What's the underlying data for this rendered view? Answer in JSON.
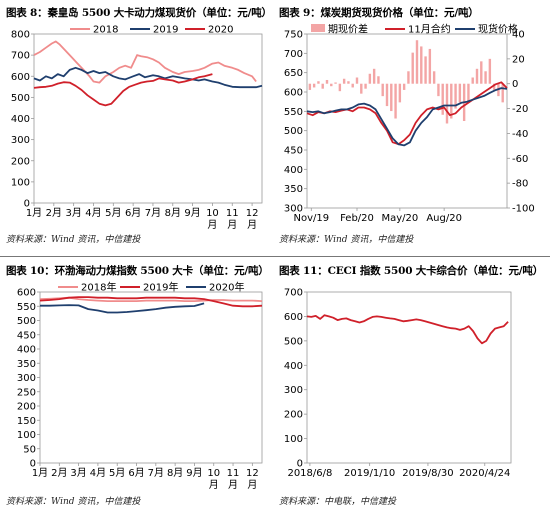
{
  "chart_data": [
    {
      "id": "c1",
      "type": "line",
      "title": "图表 8：秦皇岛 5500 大卡动力煤现货价（单位：元/吨）",
      "source": "资料来源：Wind 资讯，中信建投",
      "ylim": [
        0,
        800
      ],
      "yticks": [
        0,
        100,
        200,
        300,
        400,
        500,
        600,
        700,
        800
      ],
      "xlim": [
        1,
        12.5
      ],
      "xticks": [
        {
          "x": 1,
          "label": "1月"
        },
        {
          "x": 2,
          "label": "2月"
        },
        {
          "x": 3,
          "label": "3月"
        },
        {
          "x": 4,
          "label": "4月"
        },
        {
          "x": 5,
          "label": "5月"
        },
        {
          "x": 6,
          "label": "6月"
        },
        {
          "x": 7,
          "label": "7月"
        },
        {
          "x": 8,
          "label": "8月"
        },
        {
          "x": 9,
          "label": "9月"
        },
        {
          "x": 10,
          "label": "10月"
        },
        {
          "x": 11,
          "label": "11月"
        },
        {
          "x": 12,
          "label": "12月"
        }
      ],
      "grid": false,
      "legend": "top",
      "series": [
        {
          "name": "2018",
          "color": "#f08c8c",
          "x": [
            1,
            1.3,
            1.6,
            1.9,
            2.1,
            2.3,
            2.6,
            2.9,
            3.2,
            3.5,
            3.8,
            4.0,
            4.3,
            4.6,
            5.0,
            5.3,
            5.6,
            5.9,
            6.2,
            6.4,
            6.7,
            7.0,
            7.3,
            7.6,
            8.0,
            8.3,
            8.6,
            9.0,
            9.3,
            9.6,
            10.0,
            10.3,
            10.6,
            11.0,
            11.3,
            11.6,
            12.0,
            12.2
          ],
          "y": [
            700,
            715,
            735,
            755,
            765,
            750,
            720,
            690,
            660,
            630,
            600,
            575,
            570,
            600,
            620,
            640,
            650,
            640,
            700,
            695,
            690,
            680,
            665,
            640,
            620,
            610,
            620,
            625,
            630,
            640,
            660,
            665,
            650,
            640,
            630,
            615,
            600,
            575
          ]
        },
        {
          "name": "2019",
          "color": "#1f3f6e",
          "x": [
            1,
            1.3,
            1.6,
            1.9,
            2.2,
            2.5,
            2.8,
            3.1,
            3.4,
            3.7,
            4.0,
            4.3,
            4.6,
            5.0,
            5.3,
            5.6,
            6.0,
            6.3,
            6.6,
            7.0,
            7.3,
            7.6,
            8.0,
            8.3,
            8.6,
            9.0,
            9.3,
            9.6,
            10.0,
            10.3,
            10.6,
            11.0,
            11.4,
            11.8,
            12.2,
            12.5
          ],
          "y": [
            590,
            580,
            600,
            590,
            610,
            600,
            630,
            640,
            630,
            615,
            625,
            615,
            620,
            600,
            590,
            585,
            600,
            610,
            595,
            605,
            600,
            590,
            600,
            595,
            590,
            585,
            580,
            585,
            575,
            570,
            560,
            550,
            548,
            548,
            548,
            555
          ]
        },
        {
          "name": "2020",
          "color": "#d0202a",
          "x": [
            1,
            1.3,
            1.6,
            1.9,
            2.2,
            2.5,
            2.8,
            3.1,
            3.4,
            3.7,
            4.0,
            4.3,
            4.6,
            4.9,
            5.2,
            5.5,
            5.8,
            6.1,
            6.4,
            6.7,
            7.0,
            7.3,
            7.6,
            8.0,
            8.3,
            8.6,
            9.0,
            9.3,
            9.6,
            10.0
          ],
          "y": [
            545,
            548,
            550,
            555,
            565,
            572,
            570,
            555,
            535,
            510,
            490,
            470,
            462,
            470,
            500,
            530,
            550,
            560,
            570,
            575,
            578,
            590,
            585,
            580,
            570,
            575,
            585,
            595,
            600,
            610
          ]
        }
      ]
    },
    {
      "id": "c2",
      "type": "line",
      "title": "图表 9：煤炭期货现货价格（单位：元/吨）",
      "source": "资料来源：Wind 资讯，中信建投",
      "ylim": [
        300,
        750
      ],
      "yticks": [
        300,
        350,
        400,
        450,
        500,
        550,
        600,
        650,
        700,
        750
      ],
      "y2lim": [
        -100,
        40
      ],
      "y2ticks": [
        40,
        20,
        0,
        -20,
        -40,
        -60,
        -80,
        -100
      ],
      "xlim": [
        0,
        14
      ],
      "xticks": [
        {
          "x": 0.3,
          "label": "Nov/19"
        },
        {
          "x": 3.5,
          "label": "Feb/20"
        },
        {
          "x": 6.5,
          "label": "May/20"
        },
        {
          "x": 9.6,
          "label": "Aug/20"
        }
      ],
      "grid": false,
      "legend": "top",
      "series": [
        {
          "name": "期现价差",
          "color": "#f3a5a5",
          "type": "bar",
          "axis": "right",
          "x": [
            0.2,
            0.5,
            0.8,
            1.1,
            1.4,
            1.7,
            2.0,
            2.3,
            2.6,
            2.9,
            3.2,
            3.5,
            3.8,
            4.1,
            4.4,
            4.7,
            5.0,
            5.3,
            5.6,
            5.9,
            6.2,
            6.5,
            6.8,
            7.1,
            7.4,
            7.7,
            8.0,
            8.3,
            8.6,
            8.9,
            9.2,
            9.5,
            9.8,
            10.1,
            10.4,
            10.7,
            11.0,
            11.3,
            11.6,
            11.9,
            12.2,
            12.5,
            12.8,
            13.1,
            13.4,
            13.7
          ],
          "y": [
            -5,
            -3,
            2,
            -4,
            3,
            -2,
            1,
            -6,
            4,
            2,
            -3,
            5,
            -8,
            -4,
            8,
            12,
            6,
            -10,
            -18,
            -22,
            -28,
            -15,
            -5,
            10,
            25,
            35,
            30,
            22,
            28,
            10,
            -10,
            -25,
            -32,
            -28,
            -20,
            -15,
            -30,
            -15,
            5,
            12,
            18,
            10,
            20,
            -5,
            -10,
            -15
          ]
        },
        {
          "name": "11月合约",
          "color": "#d0202a",
          "axis": "left",
          "x": [
            0,
            0.4,
            0.8,
            1.2,
            1.6,
            2.0,
            2.4,
            2.8,
            3.2,
            3.6,
            4.0,
            4.4,
            4.8,
            5.2,
            5.6,
            6.0,
            6.4,
            6.8,
            7.2,
            7.6,
            8.0,
            8.4,
            8.8,
            9.2,
            9.6,
            10.0,
            10.4,
            10.8,
            11.2,
            11.6,
            12.0,
            12.4,
            12.8,
            13.2,
            13.6,
            14.0
          ],
          "y": [
            545,
            540,
            548,
            545,
            550,
            548,
            552,
            555,
            550,
            560,
            560,
            555,
            545,
            520,
            500,
            470,
            465,
            475,
            490,
            520,
            540,
            555,
            560,
            555,
            560,
            540,
            545,
            560,
            570,
            580,
            590,
            600,
            610,
            620,
            625,
            610
          ]
        },
        {
          "name": "现货价格",
          "color": "#1f3f6e",
          "axis": "left",
          "x": [
            0,
            0.4,
            0.8,
            1.2,
            1.6,
            2.0,
            2.4,
            2.8,
            3.2,
            3.6,
            4.0,
            4.4,
            4.8,
            5.2,
            5.6,
            6.0,
            6.4,
            6.8,
            7.2,
            7.6,
            8.0,
            8.4,
            8.8,
            9.2,
            9.6,
            10.0,
            10.4,
            10.8,
            11.2,
            11.6,
            12.0,
            12.4,
            12.8,
            13.2,
            13.6,
            14.0
          ],
          "y": [
            550,
            548,
            550,
            545,
            548,
            552,
            555,
            555,
            560,
            568,
            570,
            565,
            555,
            530,
            505,
            480,
            465,
            462,
            470,
            500,
            520,
            535,
            555,
            560,
            565,
            565,
            565,
            572,
            575,
            580,
            585,
            590,
            598,
            605,
            610,
            608
          ]
        }
      ]
    },
    {
      "id": "c3",
      "type": "line",
      "title": "图表 10：环渤海动力煤指数 5500 大卡（单位：元/吨）",
      "source": "资料来源：Wind 资讯，中信建投",
      "ylim": [
        0,
        600
      ],
      "yticks": [
        0,
        50,
        100,
        150,
        200,
        250,
        300,
        350,
        400,
        450,
        500,
        550,
        600
      ],
      "xlim": [
        1,
        12.5
      ],
      "xticks": [
        {
          "x": 1,
          "label": "1月"
        },
        {
          "x": 2,
          "label": "2月"
        },
        {
          "x": 3,
          "label": "3月"
        },
        {
          "x": 4,
          "label": "4月"
        },
        {
          "x": 5,
          "label": "5月"
        },
        {
          "x": 6,
          "label": "6月"
        },
        {
          "x": 7,
          "label": "7月"
        },
        {
          "x": 8,
          "label": "8月"
        },
        {
          "x": 9,
          "label": "9月"
        },
        {
          "x": 10,
          "label": "10月"
        },
        {
          "x": 11,
          "label": "11月"
        },
        {
          "x": 12,
          "label": "12月"
        }
      ],
      "grid": false,
      "legend": "top",
      "series": [
        {
          "name": "2018年",
          "color": "#f08c8c",
          "x": [
            1,
            1.5,
            2,
            2.5,
            3,
            3.5,
            4,
            4.5,
            5,
            5.5,
            6,
            6.5,
            7,
            7.5,
            8,
            8.5,
            9,
            9.5,
            10,
            10.5,
            11,
            11.5,
            12,
            12.5
          ],
          "y": [
            575,
            576,
            578,
            580,
            575,
            572,
            570,
            568,
            568,
            568,
            568,
            570,
            570,
            570,
            570,
            568,
            568,
            570,
            572,
            572,
            570,
            570,
            570,
            568
          ]
        },
        {
          "name": "2019年",
          "color": "#d0202a",
          "x": [
            1,
            1.5,
            2,
            2.5,
            3,
            3.5,
            4,
            4.5,
            5,
            5.5,
            6,
            6.5,
            7,
            7.5,
            8,
            8.5,
            9,
            9.5,
            10,
            10.5,
            11,
            11.5,
            12,
            12.5
          ],
          "y": [
            570,
            572,
            575,
            580,
            582,
            582,
            580,
            580,
            578,
            578,
            578,
            580,
            580,
            580,
            580,
            578,
            578,
            575,
            568,
            560,
            552,
            550,
            550,
            552
          ]
        },
        {
          "name": "2020年",
          "color": "#1f3f6e",
          "x": [
            1,
            1.5,
            2,
            2.5,
            3,
            3.5,
            4,
            4.5,
            5,
            5.5,
            6,
            6.5,
            7,
            7.5,
            8,
            8.5,
            9,
            9.5
          ],
          "y": [
            552,
            552,
            553,
            554,
            553,
            540,
            535,
            528,
            528,
            530,
            533,
            536,
            540,
            545,
            548,
            550,
            551,
            560
          ]
        }
      ]
    },
    {
      "id": "c4",
      "type": "line",
      "title": "图表 11：CECI 指数 5500 大卡综合价（单位：元/吨）",
      "source": "资料来源：中电联，中信建投",
      "ylim": [
        0,
        700
      ],
      "yticks": [
        0,
        100,
        200,
        300,
        400,
        500,
        600,
        700
      ],
      "xlim": [
        0,
        14
      ],
      "xticks": [
        {
          "x": 0.2,
          "label": "2018/6/8"
        },
        {
          "x": 4.3,
          "label": "2019/1/10"
        },
        {
          "x": 8.3,
          "label": "2019/8/30"
        },
        {
          "x": 12.2,
          "label": "2020/4/24"
        }
      ],
      "grid": false,
      "legend": "none",
      "series": [
        {
          "name": "",
          "color": "#d0202a",
          "x": [
            0,
            0.3,
            0.6,
            0.9,
            1.2,
            1.5,
            1.8,
            2.1,
            2.4,
            2.7,
            3.0,
            3.3,
            3.6,
            3.9,
            4.2,
            4.5,
            4.8,
            5.1,
            5.4,
            5.7,
            6.0,
            6.3,
            6.6,
            6.9,
            7.2,
            7.5,
            7.8,
            8.1,
            8.4,
            8.7,
            9.0,
            9.3,
            9.6,
            9.9,
            10.2,
            10.5,
            10.8,
            11.1,
            11.4,
            11.7,
            12.0,
            12.3,
            12.6,
            12.9,
            13.2,
            13.5,
            13.8
          ],
          "y": [
            600,
            598,
            602,
            590,
            605,
            600,
            595,
            585,
            590,
            592,
            585,
            580,
            575,
            580,
            590,
            598,
            600,
            598,
            595,
            592,
            590,
            585,
            580,
            582,
            585,
            588,
            585,
            580,
            575,
            570,
            565,
            560,
            555,
            552,
            550,
            545,
            550,
            560,
            540,
            510,
            490,
            500,
            530,
            550,
            555,
            560,
            578
          ]
        }
      ]
    }
  ]
}
